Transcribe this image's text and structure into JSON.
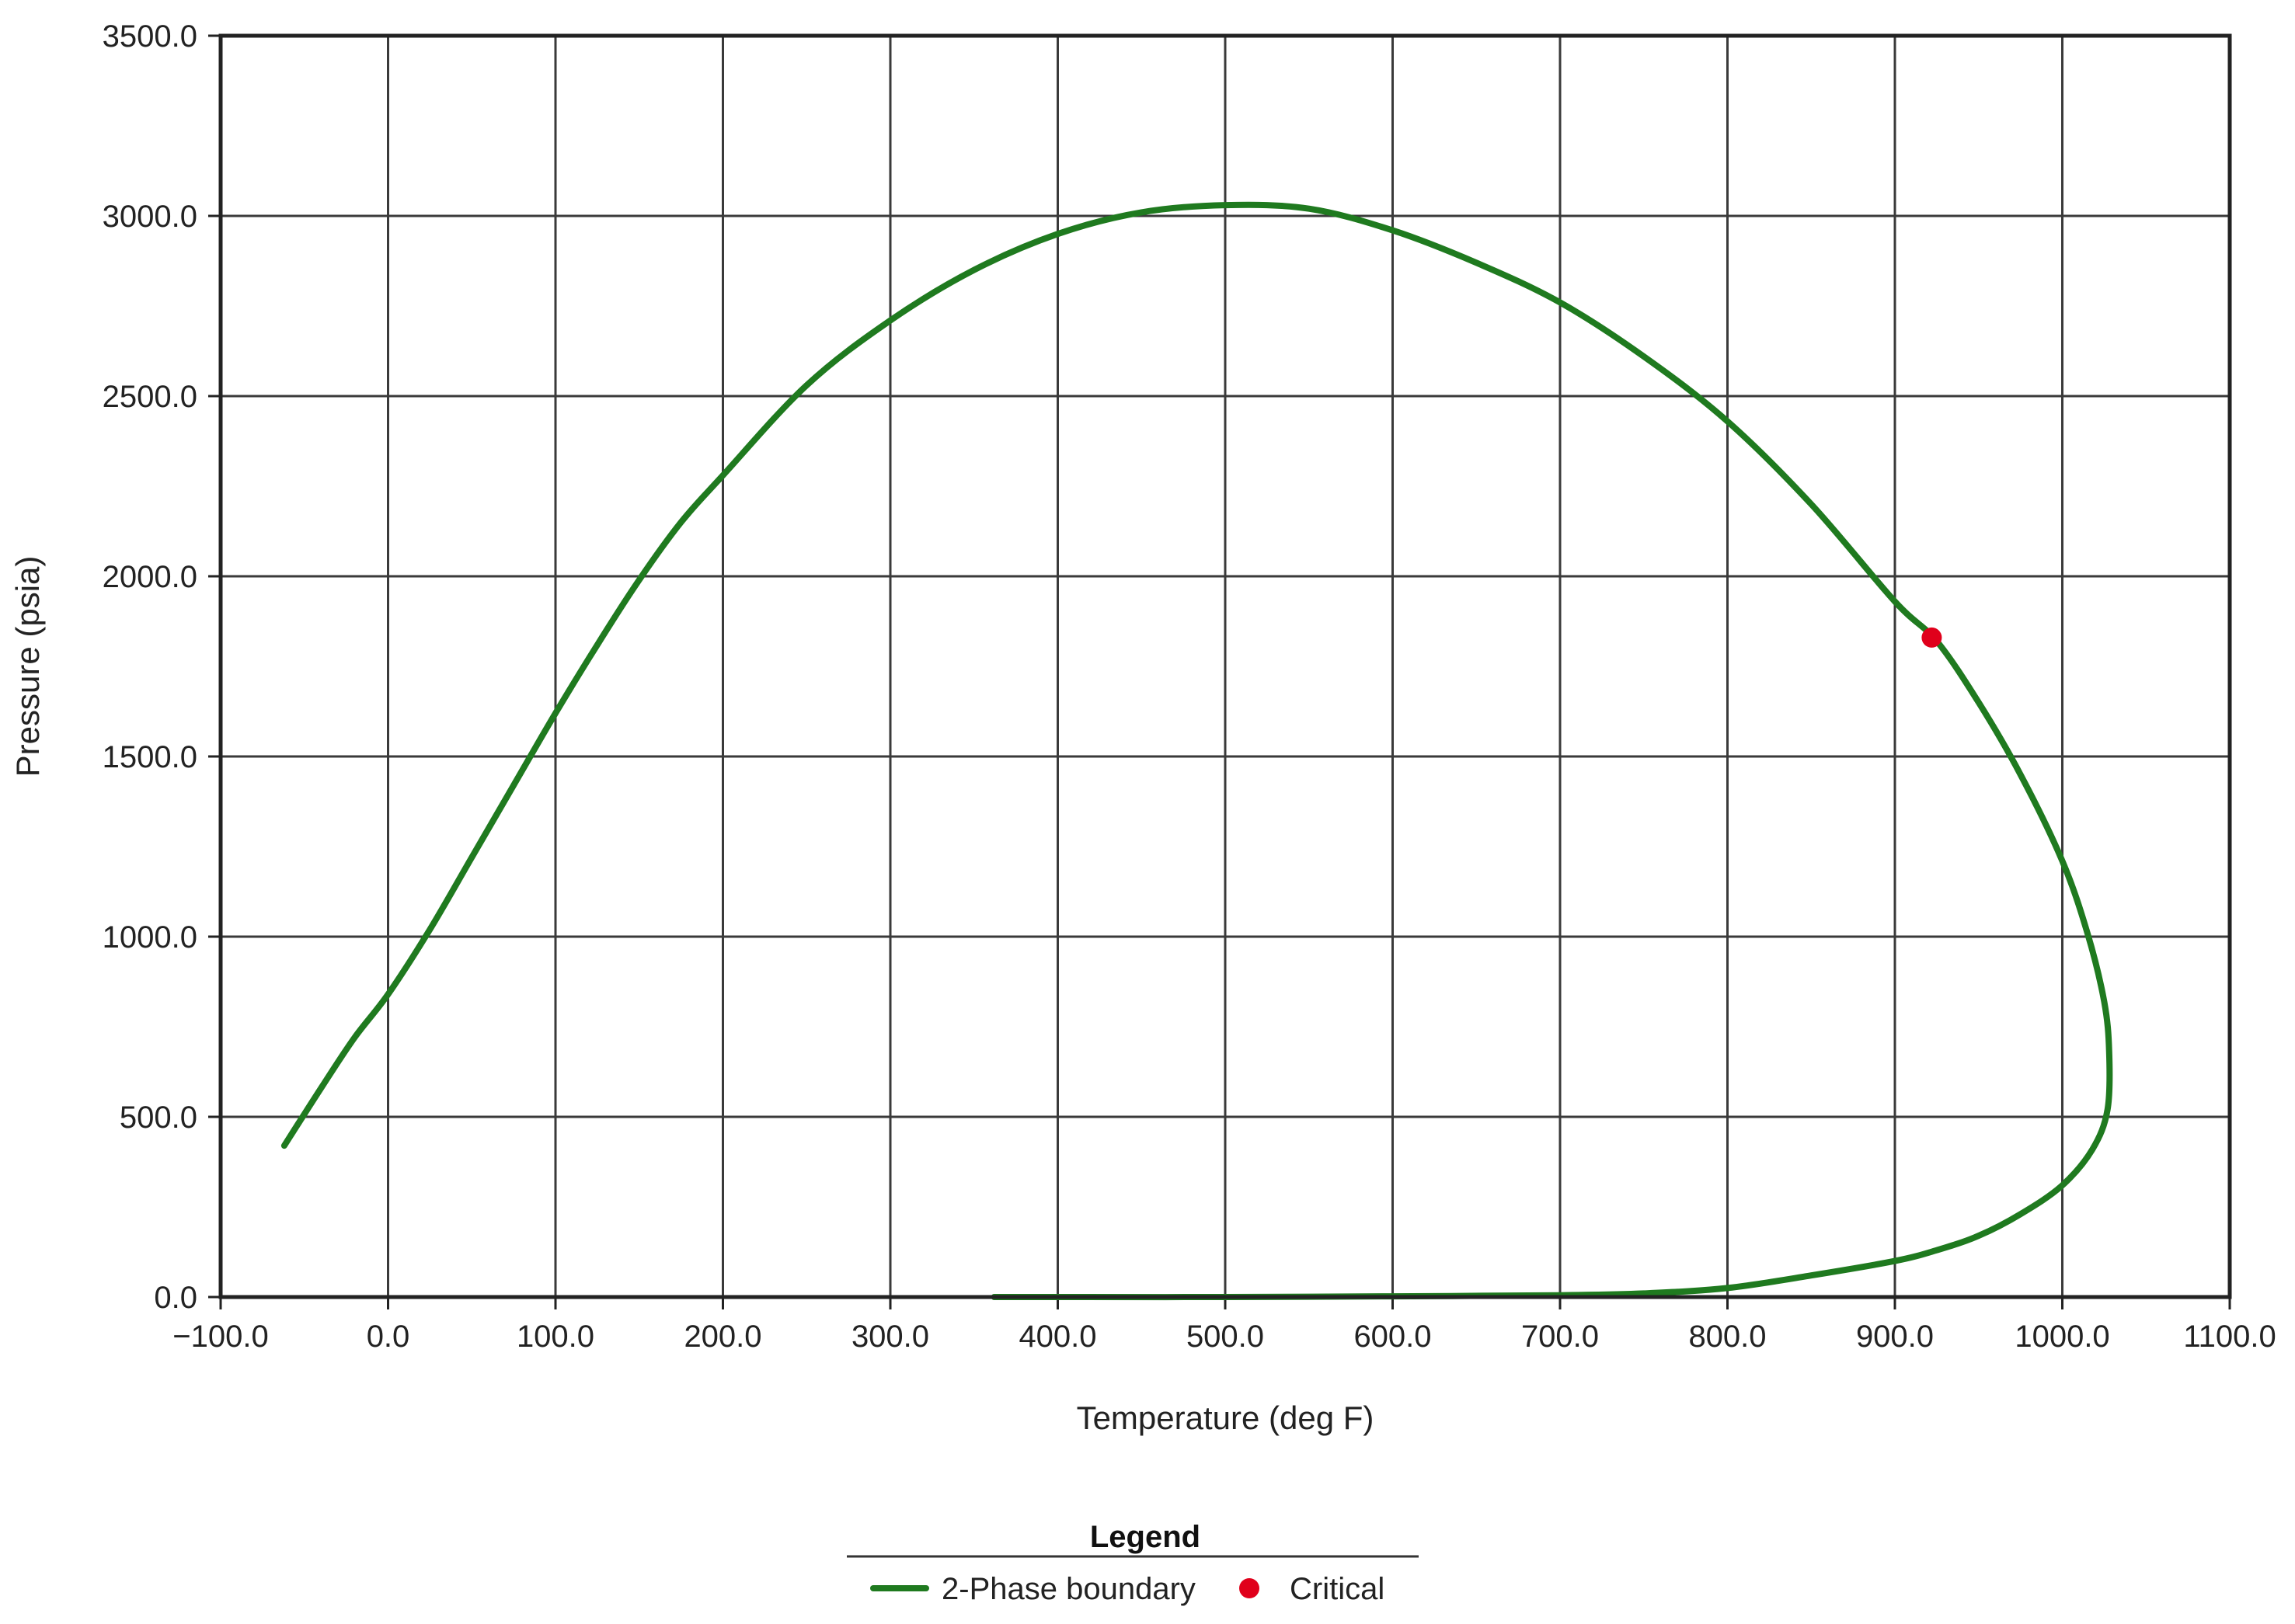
{
  "chart_data": {
    "type": "line",
    "xlabel": "Temperature (deg F)",
    "ylabel": "Pressure (psia)",
    "xlim": [
      -100,
      1100
    ],
    "ylim": [
      0,
      3500
    ],
    "xticks": [
      -100,
      0,
      100,
      200,
      300,
      400,
      500,
      600,
      700,
      800,
      900,
      1000,
      1100
    ],
    "yticks": [
      0,
      500,
      1000,
      1500,
      2000,
      2500,
      3000,
      3500
    ],
    "xtick_labels": [
      "−100.0",
      "0.0",
      "100.0",
      "200.0",
      "300.0",
      "400.0",
      "500.0",
      "600.0",
      "700.0",
      "800.0",
      "900.0",
      "1000.0",
      "1100.0"
    ],
    "ytick_labels": [
      "0.0",
      "500.0",
      "1000.0",
      "1500.0",
      "2000.0",
      "2500.0",
      "3000.0",
      "3500.0"
    ],
    "grid": true,
    "legend_position": "bottom-center",
    "legend_title": "Legend",
    "series": [
      {
        "name": "2-Phase boundary",
        "type": "line",
        "color": "#1f7a1f",
        "x": [
          -62,
          -40,
          -20,
          0,
          25,
          50,
          75,
          100,
          125,
          150,
          175,
          200,
          250,
          300,
          350,
          400,
          450,
          500,
          550,
          600,
          650,
          700,
          750,
          800,
          850,
          900,
          925,
          950,
          975,
          1000,
          1015,
          1025,
          1028,
          1027,
          1018,
          1000,
          975,
          950,
          925,
          900,
          850,
          800,
          750,
          700,
          600,
          500,
          400,
          362
        ],
        "y": [
          420,
          580,
          720,
          840,
          1020,
          1220,
          1420,
          1620,
          1810,
          1990,
          2150,
          2280,
          2530,
          2710,
          2850,
          2950,
          3010,
          3030,
          3020,
          2960,
          2870,
          2760,
          2610,
          2430,
          2200,
          1930,
          1820,
          1650,
          1450,
          1210,
          1010,
          820,
          680,
          520,
          410,
          310,
          230,
          170,
          130,
          100,
          60,
          25,
          10,
          5,
          2,
          0,
          0,
          0
        ]
      },
      {
        "name": "Critical",
        "type": "scatter",
        "color": "#e0001b",
        "x": [
          922
        ],
        "y": [
          1830
        ]
      }
    ]
  }
}
